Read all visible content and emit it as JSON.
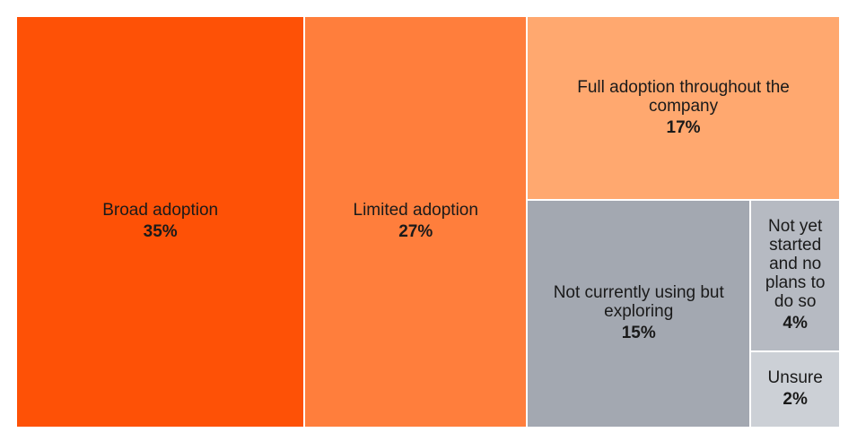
{
  "chart_data": {
    "type": "treemap",
    "title": "",
    "items": [
      {
        "label": "Broad adoption",
        "value_label": "35%",
        "value": 35,
        "color": "#FE5106"
      },
      {
        "label": "Limited adoption",
        "value_label": "27%",
        "value": 27,
        "color": "#FF7E3C"
      },
      {
        "label": "Full adoption throughout the company",
        "value_label": "17%",
        "value": 17,
        "color": "#FFA86F"
      },
      {
        "label": "Not currently using but exploring",
        "value_label": "15%",
        "value": 15,
        "color": "#A3A8B1"
      },
      {
        "label": "Not yet started and no plans to do so",
        "value_label": "4%",
        "value": 4,
        "color": "#B6BAC2"
      },
      {
        "label": "Unsure",
        "value_label": "2%",
        "value": 2,
        "color": "#CCD0D6"
      }
    ]
  }
}
